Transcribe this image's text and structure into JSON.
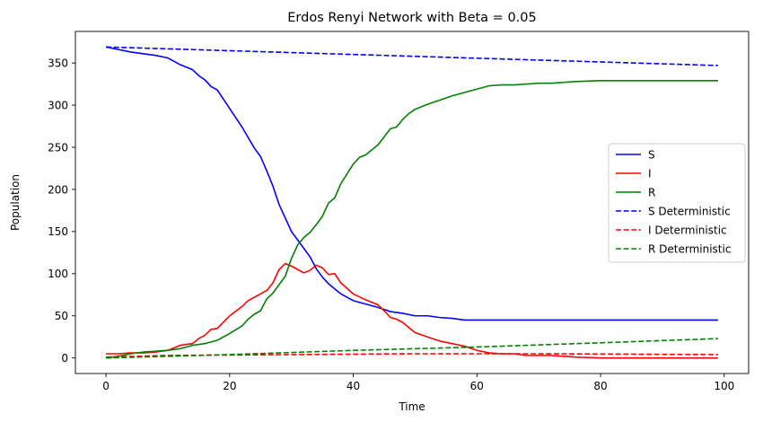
{
  "chart_data": {
    "type": "line",
    "title": "Erdos Renyi Network with Beta = 0.05",
    "xlabel": "Time",
    "ylabel": "Population",
    "xlim": [
      -4.95,
      103.95
    ],
    "ylim": [
      -18.45,
      387.45
    ],
    "xticks": [
      0,
      20,
      40,
      60,
      80,
      100
    ],
    "yticks": [
      0,
      50,
      100,
      150,
      200,
      250,
      300,
      350
    ],
    "grid": false,
    "legend_position": "center-right",
    "series": [
      {
        "name": "S",
        "color": "#0000ff",
        "dash": "solid",
        "x": [
          0,
          2,
          4,
          6,
          8,
          10,
          12,
          14,
          15,
          16,
          17,
          18,
          20,
          22,
          24,
          25,
          26,
          27,
          28,
          30,
          32,
          33,
          34,
          35,
          36,
          38,
          40,
          42,
          44,
          46,
          48,
          50,
          52,
          54,
          56,
          58,
          60,
          65,
          70,
          80,
          90,
          99
        ],
        "y": [
          369,
          366,
          363,
          361,
          359,
          356,
          348,
          342,
          335,
          330,
          322,
          318,
          296,
          274,
          249,
          239,
          222,
          204,
          182,
          150,
          130,
          120,
          106,
          96,
          88,
          76,
          68,
          64,
          60,
          55,
          53,
          50,
          50,
          48,
          47,
          45,
          45,
          45,
          45,
          45,
          45,
          45
        ]
      },
      {
        "name": "I",
        "color": "#ff0000",
        "dash": "solid",
        "x": [
          0,
          2,
          4,
          6,
          8,
          10,
          12,
          14,
          15,
          16,
          17,
          18,
          20,
          22,
          23,
          24,
          26,
          27,
          28,
          29,
          30,
          32,
          33,
          34,
          35,
          36,
          37,
          38,
          40,
          42,
          44,
          45,
          46,
          47,
          48,
          50,
          52,
          54,
          56,
          58,
          60,
          62,
          64,
          66,
          68,
          70,
          72,
          74,
          76,
          80,
          90,
          99
        ],
        "y": [
          5,
          5,
          6,
          6,
          7,
          9,
          15,
          17,
          23,
          27,
          34,
          35,
          50,
          61,
          68,
          72,
          80,
          89,
          105,
          112,
          109,
          101,
          104,
          110,
          107,
          99,
          100,
          89,
          76,
          69,
          63,
          56,
          48,
          46,
          42,
          30,
          25,
          20,
          17,
          14,
          9,
          6,
          5,
          5,
          3,
          3,
          3,
          2,
          1,
          0,
          0,
          0
        ]
      },
      {
        "name": "R",
        "color": "#008000",
        "dash": "solid",
        "x": [
          0,
          2,
          4,
          6,
          8,
          10,
          12,
          14,
          16,
          18,
          20,
          22,
          23,
          24,
          25,
          26,
          27,
          28,
          29,
          30,
          31,
          32,
          33,
          34,
          35,
          36,
          37,
          38,
          40,
          41,
          42,
          44,
          46,
          47,
          48,
          49,
          50,
          52,
          54,
          56,
          58,
          60,
          62,
          64,
          66,
          68,
          70,
          72,
          74,
          76,
          80,
          90,
          99
        ],
        "y": [
          0,
          2,
          5,
          7,
          8,
          9,
          11,
          15,
          17,
          21,
          29,
          38,
          46,
          52,
          56,
          70,
          77,
          87,
          97,
          118,
          134,
          143,
          149,
          158,
          168,
          184,
          190,
          207,
          230,
          238,
          241,
          253,
          272,
          274,
          283,
          290,
          295,
          301,
          306,
          311,
          315,
          319,
          323,
          324,
          324,
          325,
          326,
          326,
          327,
          328,
          329,
          329,
          329
        ]
      },
      {
        "name": "S Deterministic",
        "color": "#0000ff",
        "dash": "dashed",
        "x": [
          0,
          99
        ],
        "y": [
          369,
          347
        ]
      },
      {
        "name": "I Deterministic",
        "color": "#ff0000",
        "dash": "dashed",
        "x": [
          0,
          10,
          30,
          50,
          70,
          99
        ],
        "y": [
          1,
          3,
          4,
          5,
          5,
          4
        ]
      },
      {
        "name": "R Deterministic",
        "color": "#008000",
        "dash": "dashed",
        "x": [
          0,
          20,
          40,
          60,
          80,
          99
        ],
        "y": [
          0,
          4,
          9,
          13,
          18,
          23
        ]
      }
    ]
  }
}
